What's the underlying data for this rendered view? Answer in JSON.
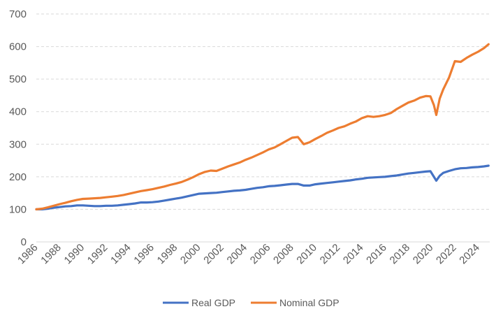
{
  "chart_data": {
    "type": "line",
    "title": "",
    "xlabel": "",
    "ylabel": "",
    "ylim": [
      0,
      700
    ],
    "yticks": [
      0,
      100,
      200,
      300,
      400,
      500,
      600,
      700
    ],
    "xlim": [
      1986,
      2025
    ],
    "xticks": [
      "1986",
      "1988",
      "1990",
      "1992",
      "1994",
      "1996",
      "1998",
      "2000",
      "2002",
      "2004",
      "2006",
      "2008",
      "2010",
      "2012",
      "2014",
      "2016",
      "2018",
      "2020",
      "2022",
      "2024"
    ],
    "grid": true,
    "legend_position": "bottom",
    "series": [
      {
        "name": "Real GDP",
        "color": "#4472c4",
        "x": [
          1986,
          1986.5,
          1987,
          1987.5,
          1988,
          1988.5,
          1989,
          1989.5,
          1990,
          1990.5,
          1991,
          1991.5,
          1992,
          1992.5,
          1993,
          1993.5,
          1994,
          1994.5,
          1995,
          1995.5,
          1996,
          1996.5,
          1997,
          1997.5,
          1998,
          1998.5,
          1999,
          1999.5,
          2000,
          2000.5,
          2001,
          2001.5,
          2002,
          2002.5,
          2003,
          2003.5,
          2004,
          2004.5,
          2005,
          2005.5,
          2006,
          2006.5,
          2007,
          2007.5,
          2008,
          2008.5,
          2009,
          2009.5,
          2010,
          2010.5,
          2011,
          2011.5,
          2012,
          2012.5,
          2013,
          2013.5,
          2014,
          2014.5,
          2015,
          2015.5,
          2016,
          2016.5,
          2017,
          2017.5,
          2018,
          2018.5,
          2019,
          2019.5,
          2019.9,
          2020.2,
          2020.4,
          2020.7,
          2021,
          2021.5,
          2022,
          2022.5,
          2023,
          2023.5,
          2024,
          2024.5,
          2024.9
        ],
        "values": [
          100,
          100,
          102,
          105,
          107,
          109,
          110,
          112,
          112,
          111,
          110,
          110,
          111,
          111,
          112,
          114,
          116,
          118,
          121,
          121,
          122,
          124,
          127,
          130,
          133,
          136,
          140,
          144,
          148,
          149,
          150,
          151,
          153,
          155,
          157,
          158,
          160,
          163,
          166,
          168,
          171,
          172,
          174,
          176,
          178,
          178,
          173,
          173,
          177,
          179,
          181,
          183,
          185,
          187,
          189,
          192,
          194,
          197,
          198,
          199,
          200,
          202,
          204,
          207,
          210,
          212,
          214,
          216,
          217,
          200,
          188,
          203,
          212,
          218,
          223,
          226,
          227,
          229,
          230,
          232,
          234
        ]
      },
      {
        "name": "Nominal GDP",
        "color": "#ed7d31",
        "x": [
          1986,
          1986.5,
          1987,
          1987.5,
          1988,
          1988.5,
          1989,
          1989.5,
          1990,
          1990.5,
          1991,
          1991.5,
          1992,
          1992.5,
          1993,
          1993.5,
          1994,
          1994.5,
          1995,
          1995.5,
          1996,
          1996.5,
          1997,
          1997.5,
          1998,
          1998.5,
          1999,
          1999.5,
          2000,
          2000.5,
          2001,
          2001.5,
          2002,
          2002.5,
          2003,
          2003.5,
          2004,
          2004.5,
          2005,
          2005.5,
          2006,
          2006.5,
          2007,
          2007.5,
          2008,
          2008.5,
          2009,
          2009.5,
          2010,
          2010.5,
          2011,
          2011.5,
          2012,
          2012.5,
          2013,
          2013.5,
          2014,
          2014.5,
          2015,
          2015.5,
          2016,
          2016.5,
          2017,
          2017.5,
          2018,
          2018.5,
          2019,
          2019.5,
          2019.9,
          2020.2,
          2020.4,
          2020.7,
          2021,
          2021.5,
          2022,
          2022.5,
          2023,
          2023.5,
          2024,
          2024.5,
          2024.9
        ],
        "values": [
          100,
          102,
          106,
          111,
          116,
          120,
          125,
          129,
          132,
          133,
          134,
          135,
          137,
          139,
          141,
          144,
          148,
          152,
          156,
          159,
          162,
          166,
          170,
          175,
          179,
          184,
          191,
          199,
          208,
          215,
          219,
          218,
          225,
          232,
          238,
          244,
          252,
          259,
          267,
          275,
          284,
          290,
          300,
          310,
          320,
          322,
          300,
          306,
          316,
          325,
          335,
          342,
          350,
          355,
          363,
          370,
          380,
          386,
          384,
          386,
          390,
          396,
          408,
          418,
          428,
          434,
          443,
          448,
          447,
          420,
          390,
          440,
          468,
          505,
          555,
          553,
          565,
          575,
          584,
          595,
          607
        ]
      }
    ]
  }
}
